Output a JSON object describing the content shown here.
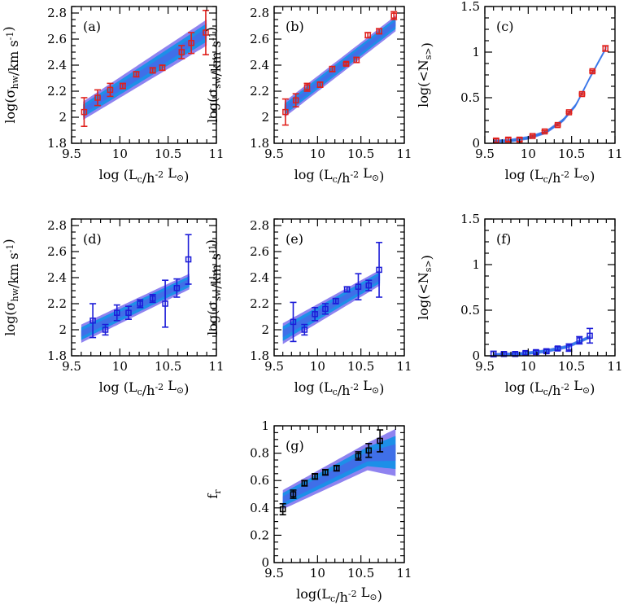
{
  "chart_data": [
    {
      "id": "a",
      "panel_label": "(a)",
      "type": "scatter",
      "xlabel": "log (L_c/h^-2 L_⊙)",
      "ylabel": "log(σ_hw/km s^-1)",
      "xlim": [
        9.5,
        11
      ],
      "ylim": [
        1.8,
        2.85
      ],
      "xticks": [
        "9.5",
        "10",
        "10.5",
        "11"
      ],
      "yticks": [
        "1.8",
        "2",
        "2.2",
        "2.4",
        "2.6",
        "2.8"
      ],
      "color": "#e0201b",
      "points": [
        {
          "x": 9.63,
          "y": 2.04,
          "err": 0.11
        },
        {
          "x": 9.77,
          "y": 2.15,
          "err": 0.06
        },
        {
          "x": 9.9,
          "y": 2.21,
          "err": 0.05
        },
        {
          "x": 10.03,
          "y": 2.24,
          "err": 0.02
        },
        {
          "x": 10.17,
          "y": 2.33,
          "err": 0.02
        },
        {
          "x": 10.34,
          "y": 2.36,
          "err": 0.02
        },
        {
          "x": 10.44,
          "y": 2.38,
          "err": 0.02
        },
        {
          "x": 10.64,
          "y": 2.5,
          "err": 0.05
        },
        {
          "x": 10.74,
          "y": 2.57,
          "err": 0.08
        },
        {
          "x": 10.89,
          "y": 2.65,
          "err": 0.17
        }
      ],
      "band": {
        "x": [
          9.62,
          10.9
        ],
        "center": [
          2.05,
          2.65
        ],
        "halfwidth": [
          0.07,
          0.1
        ]
      }
    },
    {
      "id": "b",
      "panel_label": "(b)",
      "type": "scatter",
      "xlabel": "log (L_c/h^-2 L_⊙)",
      "ylabel": "log(σ_sw/km s^-1)",
      "xlim": [
        9.5,
        11
      ],
      "ylim": [
        1.8,
        2.85
      ],
      "xticks": [
        "9.5",
        "10",
        "10.5",
        "11"
      ],
      "yticks": [
        "1.8",
        "2",
        "2.2",
        "2.4",
        "2.6",
        "2.8"
      ],
      "color": "#e0201b",
      "points": [
        {
          "x": 9.63,
          "y": 2.04,
          "err": 0.1
        },
        {
          "x": 9.75,
          "y": 2.13,
          "err": 0.05
        },
        {
          "x": 9.88,
          "y": 2.23,
          "err": 0.03
        },
        {
          "x": 10.03,
          "y": 2.25,
          "err": 0.02
        },
        {
          "x": 10.17,
          "y": 2.37,
          "err": 0.02
        },
        {
          "x": 10.33,
          "y": 2.41,
          "err": 0.01
        },
        {
          "x": 10.45,
          "y": 2.44,
          "err": 0.02
        },
        {
          "x": 10.58,
          "y": 2.63,
          "err": 0.02
        },
        {
          "x": 10.71,
          "y": 2.66,
          "err": 0.02
        },
        {
          "x": 10.88,
          "y": 2.78,
          "err": 0.03
        }
      ],
      "band": {
        "x": [
          9.62,
          10.9
        ],
        "center": [
          2.06,
          2.72
        ],
        "halfwidth": [
          0.06,
          0.06
        ]
      }
    },
    {
      "id": "c",
      "panel_label": "(c)",
      "type": "scatter",
      "xlabel": "log (L_c/h^-2 L_⊙)",
      "ylabel": "log(<N_s>)",
      "xlim": [
        9.5,
        11
      ],
      "ylim": [
        0,
        1.5
      ],
      "xticks": [
        "9.5",
        "10",
        "10.5",
        "11"
      ],
      "yticks": [
        "0",
        "0.5",
        "1",
        "1.5"
      ],
      "color": "#e0201b",
      "points": [
        {
          "x": 9.63,
          "y": 0.03,
          "err": 0.02
        },
        {
          "x": 9.77,
          "y": 0.04,
          "err": 0.02
        },
        {
          "x": 9.9,
          "y": 0.04,
          "err": 0.02
        },
        {
          "x": 10.05,
          "y": 0.08,
          "err": 0.01
        },
        {
          "x": 10.19,
          "y": 0.13,
          "err": 0.01
        },
        {
          "x": 10.34,
          "y": 0.2,
          "err": 0.01
        },
        {
          "x": 10.47,
          "y": 0.34,
          "err": 0.01
        },
        {
          "x": 10.62,
          "y": 0.54,
          "err": 0.01
        },
        {
          "x": 10.74,
          "y": 0.79,
          "err": 0.01
        },
        {
          "x": 10.89,
          "y": 1.04,
          "err": 0.03
        }
      ],
      "band": {
        "x": [
          9.6,
          10.9
        ],
        "curve": [
          [
            9.6,
            0.02
          ],
          [
            9.8,
            0.03
          ],
          [
            10.0,
            0.06
          ],
          [
            10.2,
            0.12
          ],
          [
            10.4,
            0.25
          ],
          [
            10.55,
            0.42
          ],
          [
            10.7,
            0.7
          ],
          [
            10.9,
            1.05
          ]
        ],
        "halfwidth": 0.02
      }
    },
    {
      "id": "d",
      "panel_label": "(d)",
      "type": "scatter",
      "xlabel": "log (L_c/h^-2 L_⊙)",
      "ylabel": "log(σ_hw/km s^-1)",
      "xlim": [
        9.5,
        11
      ],
      "ylim": [
        1.8,
        2.85
      ],
      "xticks": [
        "9.5",
        "10",
        "10.5",
        "11"
      ],
      "yticks": [
        "1.8",
        "2",
        "2.2",
        "2.4",
        "2.6",
        "2.8"
      ],
      "color": "#1c1cd8",
      "points": [
        {
          "x": 9.72,
          "y": 2.07,
          "err": 0.13
        },
        {
          "x": 9.85,
          "y": 2.0,
          "err": 0.04
        },
        {
          "x": 9.97,
          "y": 2.13,
          "err": 0.06
        },
        {
          "x": 10.09,
          "y": 2.13,
          "err": 0.05
        },
        {
          "x": 10.21,
          "y": 2.2,
          "err": 0.03
        },
        {
          "x": 10.34,
          "y": 2.24,
          "err": 0.03
        },
        {
          "x": 10.47,
          "y": 2.2,
          "err": 0.18
        },
        {
          "x": 10.59,
          "y": 2.32,
          "err": 0.07
        },
        {
          "x": 10.71,
          "y": 2.54,
          "err": 0.19
        }
      ],
      "band": {
        "x": [
          9.6,
          10.72
        ],
        "center": [
          1.97,
          2.37
        ],
        "halfwidth": [
          0.07,
          0.06
        ]
      }
    },
    {
      "id": "e",
      "panel_label": "(e)",
      "type": "scatter",
      "xlabel": "log (L_c/h^-2 L_⊙)",
      "ylabel": "log(σ_sw/km s^-1)",
      "xlim": [
        9.5,
        11
      ],
      "ylim": [
        1.8,
        2.85
      ],
      "xticks": [
        "9.5",
        "10",
        "10.5",
        "11"
      ],
      "yticks": [
        "1.8",
        "2",
        "2.2",
        "2.4",
        "2.6",
        "2.8"
      ],
      "color": "#1c1cd8",
      "points": [
        {
          "x": 9.72,
          "y": 2.06,
          "err": 0.15
        },
        {
          "x": 9.85,
          "y": 2.0,
          "err": 0.04
        },
        {
          "x": 9.97,
          "y": 2.12,
          "err": 0.05
        },
        {
          "x": 10.09,
          "y": 2.16,
          "err": 0.04
        },
        {
          "x": 10.21,
          "y": 2.22,
          "err": 0.02
        },
        {
          "x": 10.34,
          "y": 2.31,
          "err": 0.02
        },
        {
          "x": 10.47,
          "y": 2.33,
          "err": 0.1
        },
        {
          "x": 10.59,
          "y": 2.34,
          "err": 0.04
        },
        {
          "x": 10.71,
          "y": 2.46,
          "err": 0.21
        }
      ],
      "band": {
        "x": [
          9.6,
          10.72
        ],
        "center": [
          1.97,
          2.4
        ],
        "halfwidth": [
          0.08,
          0.06
        ]
      }
    },
    {
      "id": "f",
      "panel_label": "(f)",
      "type": "scatter",
      "xlabel": "log (L_c/h^-2 L_⊙)",
      "ylabel": "log(<N_s>)",
      "xlim": [
        9.5,
        11
      ],
      "ylim": [
        0,
        1.5
      ],
      "xticks": [
        "9.5",
        "10",
        "10.5",
        "11"
      ],
      "yticks": [
        "0",
        "0.5",
        "1",
        "1.5"
      ],
      "color": "#1c1cd8",
      "points": [
        {
          "x": 9.6,
          "y": 0.02,
          "err": 0.03
        },
        {
          "x": 9.72,
          "y": 0.02,
          "err": 0.02
        },
        {
          "x": 9.85,
          "y": 0.02,
          "err": 0.02
        },
        {
          "x": 9.97,
          "y": 0.03,
          "err": 0.02
        },
        {
          "x": 10.09,
          "y": 0.04,
          "err": 0.02
        },
        {
          "x": 10.21,
          "y": 0.05,
          "err": 0.02
        },
        {
          "x": 10.34,
          "y": 0.08,
          "err": 0.02
        },
        {
          "x": 10.47,
          "y": 0.09,
          "err": 0.04
        },
        {
          "x": 10.59,
          "y": 0.17,
          "err": 0.04
        },
        {
          "x": 10.71,
          "y": 0.22,
          "err": 0.08
        }
      ],
      "band": {
        "x": [
          9.6,
          10.72
        ],
        "curve": [
          [
            9.6,
            0.01
          ],
          [
            9.9,
            0.02
          ],
          [
            10.2,
            0.05
          ],
          [
            10.45,
            0.1
          ],
          [
            10.72,
            0.21
          ]
        ],
        "halfwidth": 0.02
      }
    },
    {
      "id": "g",
      "panel_label": "(g)",
      "type": "scatter",
      "xlabel": "log(L_c/h^-2 L_⊙)",
      "ylabel": "f_r",
      "xlim": [
        9.5,
        11
      ],
      "ylim": [
        0,
        1
      ],
      "xticks": [
        "9.5",
        "10",
        "10.5",
        "11"
      ],
      "yticks": [
        "0",
        "0.2",
        "0.4",
        "0.6",
        "0.8",
        "1"
      ],
      "color": "#000000",
      "points": [
        {
          "x": 9.6,
          "y": 0.39,
          "err": 0.04
        },
        {
          "x": 9.72,
          "y": 0.5,
          "err": 0.03
        },
        {
          "x": 9.85,
          "y": 0.58,
          "err": 0.02
        },
        {
          "x": 9.97,
          "y": 0.63,
          "err": 0.02
        },
        {
          "x": 10.09,
          "y": 0.66,
          "err": 0.02
        },
        {
          "x": 10.22,
          "y": 0.69,
          "err": 0.02
        },
        {
          "x": 10.47,
          "y": 0.78,
          "err": 0.03
        },
        {
          "x": 10.59,
          "y": 0.82,
          "err": 0.05
        },
        {
          "x": 10.72,
          "y": 0.89,
          "err": 0.08
        }
      ],
      "band": {
        "x": [
          9.6,
          10.9
        ],
        "center": [
          0.46,
          0.88
        ],
        "halfwidth": [
          0.07,
          0.11
        ],
        "curve_down": true
      }
    }
  ],
  "colors": {
    "band_outer": "#8f83f0",
    "band_inner": "#1d8fe8",
    "band_core": "#3f6fe8",
    "red_points": "#e0201b",
    "blue_points": "#1c1cd8",
    "black_points": "#000000"
  }
}
